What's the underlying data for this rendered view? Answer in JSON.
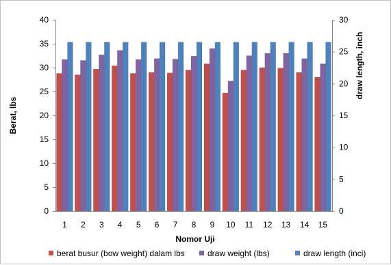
{
  "chart_data": {
    "type": "bar",
    "categories": [
      "1",
      "2",
      "3",
      "4",
      "5",
      "6",
      "7",
      "8",
      "9",
      "10",
      "11",
      "12",
      "13",
      "14",
      "15"
    ],
    "series": [
      {
        "name": "berat busur (bow weight) dalam lbs",
        "axis": "left",
        "color": "#c0504d",
        "values": [
          28.8,
          28.5,
          29.7,
          30.4,
          28.8,
          29.0,
          28.9,
          29.5,
          30.8,
          24.7,
          29.5,
          30.0,
          29.9,
          29.0,
          28.0
        ]
      },
      {
        "name": "draw weight (lbs)",
        "axis": "left",
        "color": "#8064a2",
        "values": [
          31.7,
          31.5,
          32.7,
          33.6,
          31.7,
          31.9,
          31.8,
          32.4,
          34.0,
          27.2,
          32.5,
          33.0,
          33.0,
          31.9,
          30.8
        ]
      },
      {
        "name": "draw length (inci)",
        "axis": "right",
        "color": "#4f81bd",
        "values": [
          26.5,
          26.5,
          26.5,
          26.5,
          26.5,
          26.5,
          26.5,
          26.5,
          26.5,
          26.5,
          26.5,
          26.5,
          26.5,
          26.5,
          26.5
        ]
      }
    ],
    "xlabel": "Nomor Uji",
    "ylabel": "Berat, lbs",
    "y2label": "draw length, inch",
    "ylim": [
      0,
      40
    ],
    "yticks": [
      "0",
      "5",
      "10",
      "15",
      "20",
      "25",
      "30",
      "35",
      "40"
    ],
    "y2lim": [
      0,
      30
    ],
    "y2ticks": [
      "0",
      "5",
      "10",
      "15",
      "20",
      "25",
      "30"
    ],
    "grid": false,
    "legend": "bottom"
  }
}
